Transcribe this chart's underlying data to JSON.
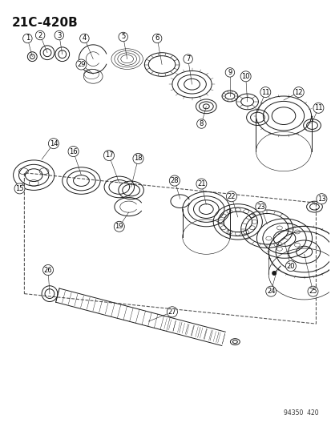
{
  "title": "21C-420B",
  "footer": "94350  420",
  "bg_color": "#ffffff",
  "title_fontsize": 11,
  "title_bold": true,
  "line_color": "#1a1a1a",
  "label_fontsize": 6.0
}
